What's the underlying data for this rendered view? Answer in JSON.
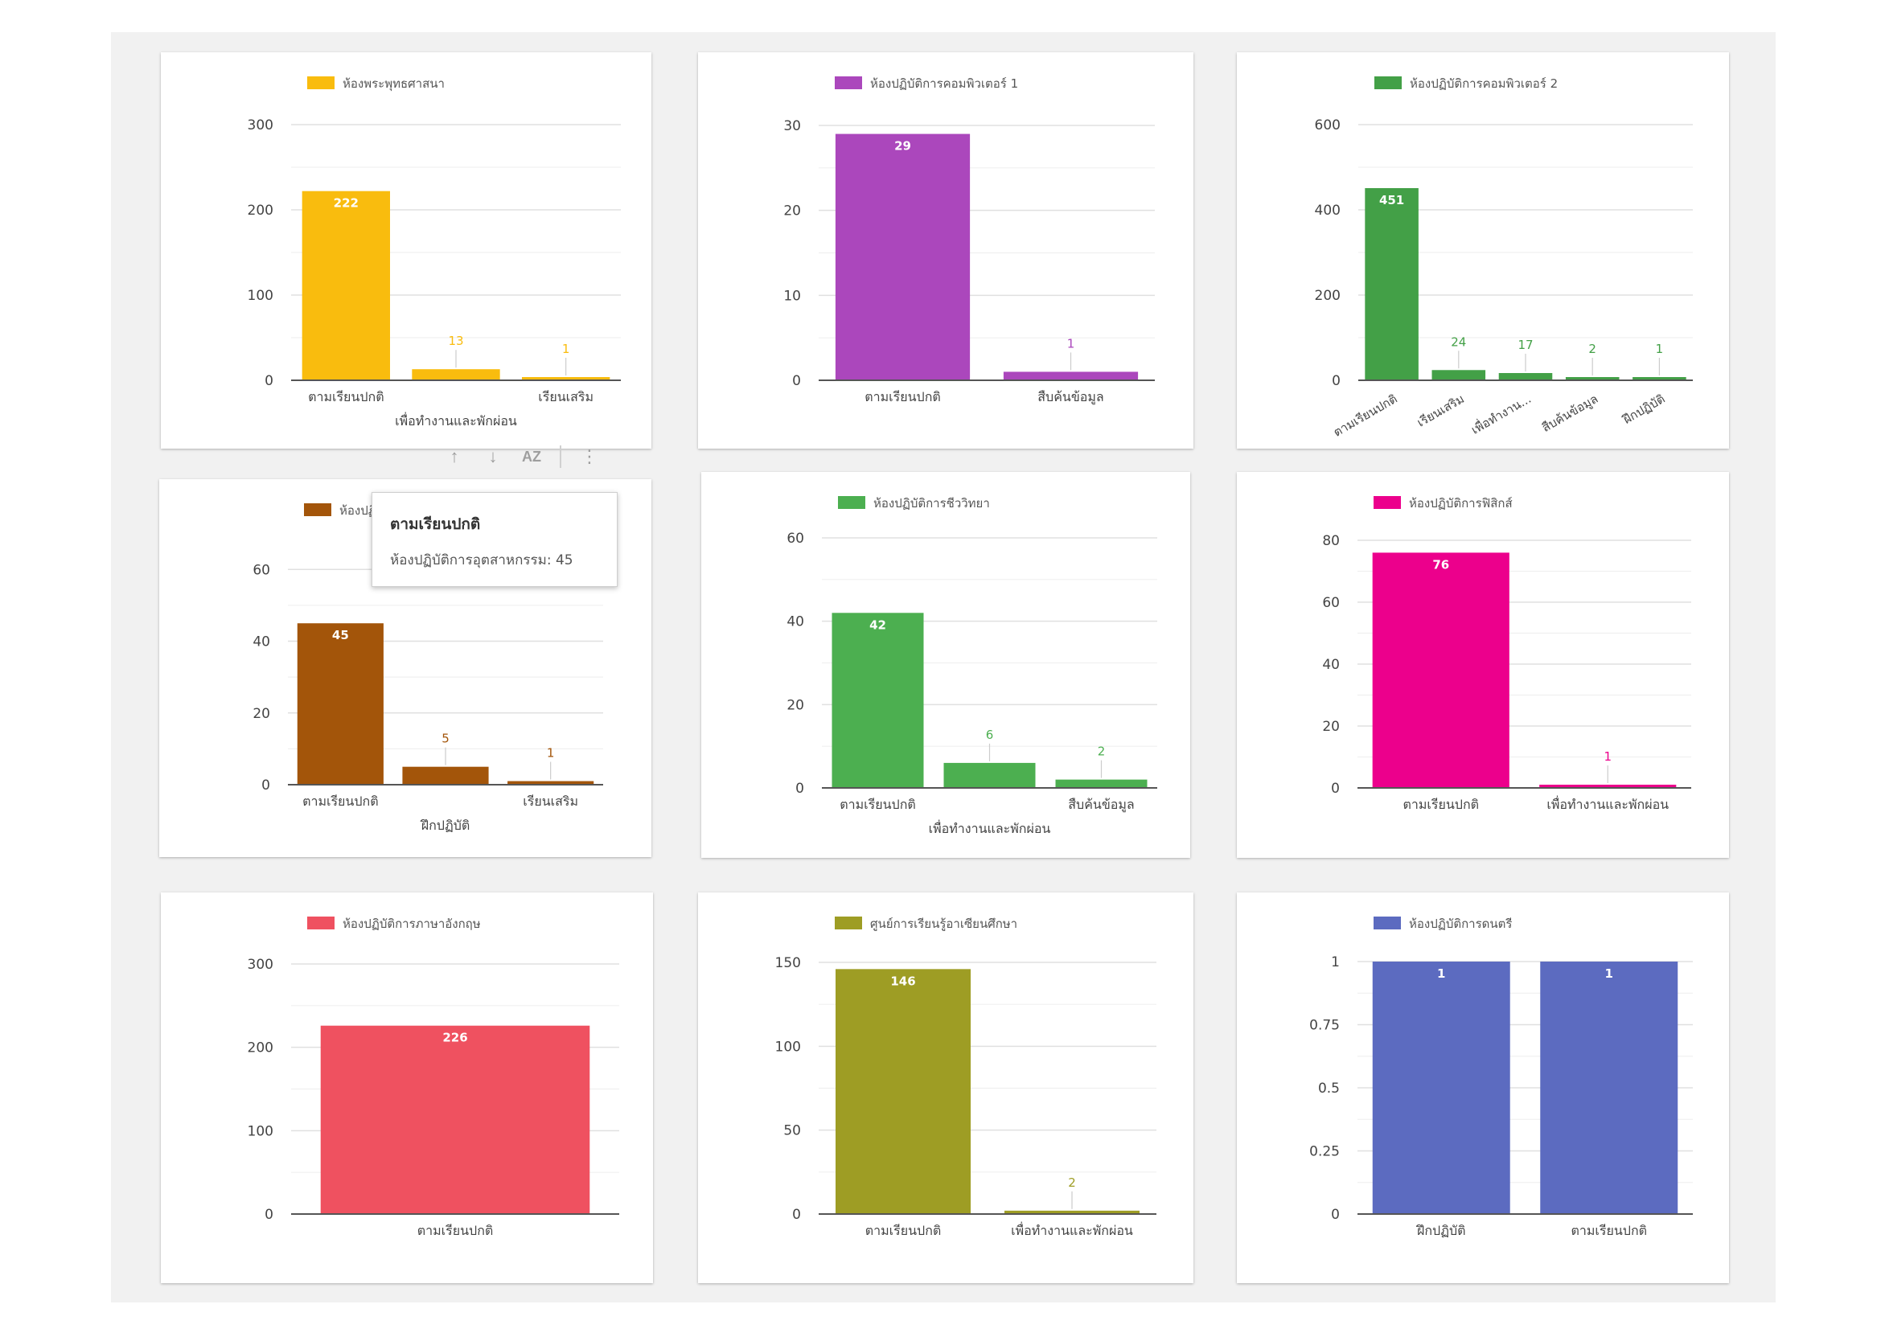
{
  "chart_data": [
    {
      "type": "bar",
      "legend": "ห้องพระพุทธศาสนา",
      "color": "#f9bc0e",
      "categories": [
        "ตามเรียนปกติ",
        "เพื่อทำงานและพักผ่อน",
        "เรียนเสริม"
      ],
      "values": [
        222,
        13,
        1
      ],
      "yticks": [
        0,
        100,
        200,
        300
      ],
      "ylim": [
        0,
        300
      ],
      "legend_position": "top-left"
    },
    {
      "type": "bar",
      "legend": "ห้องปฏิบัติการคอมพิวเตอร์ 1",
      "color": "#ab47bc",
      "categories": [
        "ตามเรียนปกติ",
        "สืบค้นข้อมูล"
      ],
      "values": [
        29,
        1
      ],
      "yticks": [
        0,
        10,
        20,
        30
      ],
      "ylim": [
        0,
        30
      ],
      "legend_position": "top-left"
    },
    {
      "type": "bar",
      "legend": "ห้องปฏิบัติการคอมพิวเตอร์ 2",
      "color": "#43a047",
      "categories": [
        "ตามเรียนปกติ",
        "เรียนเสริม",
        "เพื่อทำงาน...",
        "สืบค้นข้อมูล",
        "ฝึกปฏิบัติ"
      ],
      "values": [
        451,
        24,
        17,
        2,
        1
      ],
      "yticks": [
        0,
        200,
        400,
        600
      ],
      "ylim": [
        0,
        600
      ],
      "legend_position": "top-left"
    },
    {
      "type": "bar",
      "legend": "ห้องปฏิบัติการอุตสาหกรรม",
      "color": "#a3550a",
      "categories": [
        "ตามเรียนปกติ",
        "ฝึกปฏิบัติ",
        "เรียนเสริม"
      ],
      "values": [
        45,
        5,
        1
      ],
      "yticks": [
        0,
        20,
        40,
        60
      ],
      "ylim": [
        0,
        65
      ],
      "legend_position": "top-left"
    },
    {
      "type": "bar",
      "legend": "ห้องปฏิบัติการชีววิทยา",
      "color": "#4caf50",
      "categories": [
        "ตามเรียนปกติ",
        "เพื่อทำงานและพักผ่อน",
        "สืบค้นข้อมูล"
      ],
      "values": [
        42,
        6,
        2
      ],
      "yticks": [
        0,
        20,
        40,
        60
      ],
      "ylim": [
        0,
        60
      ],
      "legend_position": "top-left"
    },
    {
      "type": "bar",
      "legend": "ห้องปฏิบัติการฟิสิกส์",
      "color": "#ec008c",
      "categories": [
        "ตามเรียนปกติ",
        "เพื่อทำงานและพักผ่อน"
      ],
      "values": [
        76,
        1
      ],
      "yticks": [
        0,
        20,
        40,
        60,
        80
      ],
      "ylim": [
        0,
        80
      ],
      "legend_position": "top-left"
    },
    {
      "type": "bar",
      "legend": "ห้องปฏิบัติการภาษาอังกฤษ",
      "color": "#ef5160",
      "categories": [
        "ตามเรียนปกติ"
      ],
      "values": [
        226
      ],
      "yticks": [
        0,
        100,
        200,
        300
      ],
      "ylim": [
        0,
        300
      ],
      "legend_position": "top-left"
    },
    {
      "type": "bar",
      "legend": "ศูนย์การเรียนรู้อาเซียนศึกษา",
      "color": "#9e9d24",
      "categories": [
        "ตามเรียนปกติ",
        "เพื่อทำงานและพักผ่อน"
      ],
      "values": [
        146,
        2
      ],
      "yticks": [
        0,
        50,
        100,
        150
      ],
      "ylim": [
        0,
        150
      ],
      "legend_position": "top-left"
    },
    {
      "type": "bar",
      "legend": "ห้องปฏิบัติการดนตรี",
      "color": "#5c6bc0",
      "categories": [
        "ฝึกปฏิบัติ",
        "ตามเรียนปกติ"
      ],
      "values": [
        1,
        1
      ],
      "yticks": [
        0,
        0.25,
        0.5,
        0.75,
        1
      ],
      "ylim": [
        0,
        1
      ],
      "legend_position": "top-left"
    }
  ],
  "tooltip": {
    "title": "ตามเรียนปกติ",
    "body": "ห้องปฏิบัติการอุตสาหกรรม: 45"
  },
  "toolbar": {
    "up_icon": "arrow-up-icon",
    "down_icon": "arrow-down-icon",
    "sort_icon": "sort-az-icon",
    "more_icon": "more-vert-icon",
    "az_label": "AZ"
  }
}
